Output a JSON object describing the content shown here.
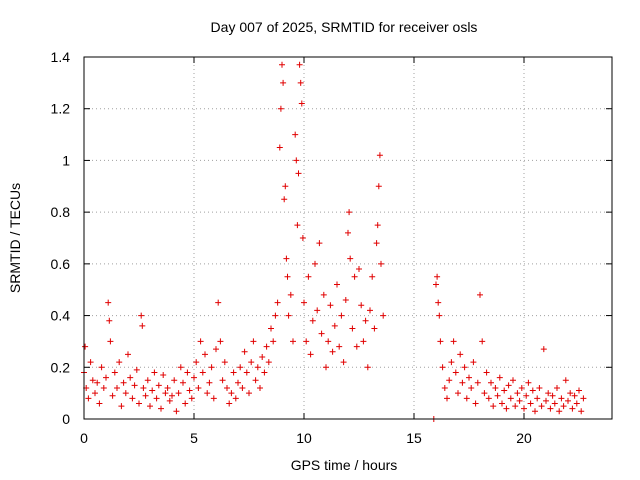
{
  "chart_data": {
    "type": "scatter",
    "title": "Day 007 of 2025, SRMTID for receiver osls",
    "xlabel": "GPS time / hours",
    "ylabel": "SRMTID / TECUs",
    "xlim": [
      0,
      24
    ],
    "ylim": [
      0,
      1.4
    ],
    "x_ticks": [
      0,
      5,
      10,
      15,
      20
    ],
    "x_tick_labels": [
      "0",
      "5",
      "10",
      "15",
      "20"
    ],
    "y_ticks": [
      0,
      0.2,
      0.4,
      0.6,
      0.8,
      1.0,
      1.2,
      1.4
    ],
    "y_tick_labels": [
      "0",
      "0.2",
      "0.4",
      "0.6",
      "0.8",
      "1",
      "1.2",
      "1.4"
    ],
    "grid": true,
    "marker": "plus",
    "series_color": "#e00000",
    "series": [
      {
        "name": "SRMTID",
        "points": [
          [
            0.0,
            0.18
          ],
          [
            0.05,
            0.28
          ],
          [
            0.1,
            0.12
          ],
          [
            0.2,
            0.08
          ],
          [
            0.3,
            0.22
          ],
          [
            0.4,
            0.15
          ],
          [
            0.5,
            0.1
          ],
          [
            0.6,
            0.14
          ],
          [
            0.7,
            0.06
          ],
          [
            0.8,
            0.2
          ],
          [
            0.9,
            0.12
          ],
          [
            1.0,
            0.16
          ],
          [
            1.1,
            0.45
          ],
          [
            1.15,
            0.38
          ],
          [
            1.2,
            0.3
          ],
          [
            1.3,
            0.09
          ],
          [
            1.4,
            0.18
          ],
          [
            1.5,
            0.12
          ],
          [
            1.6,
            0.22
          ],
          [
            1.7,
            0.05
          ],
          [
            1.8,
            0.14
          ],
          [
            1.9,
            0.1
          ],
          [
            2.0,
            0.25
          ],
          [
            2.1,
            0.16
          ],
          [
            2.2,
            0.08
          ],
          [
            2.3,
            0.13
          ],
          [
            2.4,
            0.19
          ],
          [
            2.5,
            0.06
          ],
          [
            2.6,
            0.4
          ],
          [
            2.65,
            0.36
          ],
          [
            2.7,
            0.12
          ],
          [
            2.8,
            0.09
          ],
          [
            2.9,
            0.15
          ],
          [
            3.0,
            0.05
          ],
          [
            3.1,
            0.11
          ],
          [
            3.2,
            0.18
          ],
          [
            3.3,
            0.08
          ],
          [
            3.4,
            0.13
          ],
          [
            3.5,
            0.04
          ],
          [
            3.6,
            0.17
          ],
          [
            3.7,
            0.1
          ],
          [
            3.8,
            0.12
          ],
          [
            3.9,
            0.07
          ],
          [
            4.0,
            0.09
          ],
          [
            4.1,
            0.15
          ],
          [
            4.2,
            0.03
          ],
          [
            4.3,
            0.1
          ],
          [
            4.4,
            0.2
          ],
          [
            4.5,
            0.14
          ],
          [
            4.6,
            0.06
          ],
          [
            4.7,
            0.18
          ],
          [
            4.8,
            0.11
          ],
          [
            4.9,
            0.08
          ],
          [
            5.0,
            0.16
          ],
          [
            5.1,
            0.22
          ],
          [
            5.2,
            0.12
          ],
          [
            5.3,
            0.3
          ],
          [
            5.4,
            0.18
          ],
          [
            5.5,
            0.25
          ],
          [
            5.6,
            0.1
          ],
          [
            5.7,
            0.14
          ],
          [
            5.8,
            0.2
          ],
          [
            5.9,
            0.08
          ],
          [
            6.0,
            0.27
          ],
          [
            6.1,
            0.45
          ],
          [
            6.2,
            0.3
          ],
          [
            6.3,
            0.15
          ],
          [
            6.4,
            0.22
          ],
          [
            6.5,
            0.12
          ],
          [
            6.6,
            0.06
          ],
          [
            6.7,
            0.1
          ],
          [
            6.8,
            0.18
          ],
          [
            6.9,
            0.08
          ],
          [
            7.0,
            0.14
          ],
          [
            7.1,
            0.2
          ],
          [
            7.2,
            0.12
          ],
          [
            7.3,
            0.26
          ],
          [
            7.4,
            0.18
          ],
          [
            7.5,
            0.1
          ],
          [
            7.6,
            0.22
          ],
          [
            7.7,
            0.3
          ],
          [
            7.8,
            0.15
          ],
          [
            7.9,
            0.2
          ],
          [
            8.0,
            0.12
          ],
          [
            8.1,
            0.24
          ],
          [
            8.2,
            0.18
          ],
          [
            8.3,
            0.28
          ],
          [
            8.4,
            0.22
          ],
          [
            8.5,
            0.35
          ],
          [
            8.6,
            0.3
          ],
          [
            8.7,
            0.4
          ],
          [
            8.8,
            0.45
          ],
          [
            8.9,
            1.05
          ],
          [
            8.95,
            1.2
          ],
          [
            9.0,
            1.37
          ],
          [
            9.05,
            1.3
          ],
          [
            9.1,
            0.85
          ],
          [
            9.15,
            0.9
          ],
          [
            9.2,
            0.62
          ],
          [
            9.25,
            0.55
          ],
          [
            9.3,
            0.4
          ],
          [
            9.4,
            0.48
          ],
          [
            9.5,
            0.3
          ],
          [
            9.6,
            1.1
          ],
          [
            9.65,
            1.0
          ],
          [
            9.7,
            0.75
          ],
          [
            9.75,
            0.95
          ],
          [
            9.8,
            1.37
          ],
          [
            9.85,
            1.3
          ],
          [
            9.9,
            1.22
          ],
          [
            9.95,
            0.7
          ],
          [
            10.0,
            0.45
          ],
          [
            10.1,
            0.3
          ],
          [
            10.2,
            0.55
          ],
          [
            10.3,
            0.25
          ],
          [
            10.4,
            0.38
          ],
          [
            10.5,
            0.6
          ],
          [
            10.6,
            0.42
          ],
          [
            10.7,
            0.68
          ],
          [
            10.8,
            0.33
          ],
          [
            10.9,
            0.48
          ],
          [
            11.0,
            0.2
          ],
          [
            11.1,
            0.3
          ],
          [
            11.2,
            0.44
          ],
          [
            11.3,
            0.26
          ],
          [
            11.4,
            0.36
          ],
          [
            11.5,
            0.52
          ],
          [
            11.6,
            0.28
          ],
          [
            11.7,
            0.4
          ],
          [
            11.8,
            0.22
          ],
          [
            11.9,
            0.46
          ],
          [
            12.0,
            0.72
          ],
          [
            12.05,
            0.8
          ],
          [
            12.1,
            0.62
          ],
          [
            12.2,
            0.35
          ],
          [
            12.3,
            0.55
          ],
          [
            12.4,
            0.28
          ],
          [
            12.5,
            0.58
          ],
          [
            12.6,
            0.44
          ],
          [
            12.7,
            0.3
          ],
          [
            12.8,
            0.38
          ],
          [
            12.9,
            0.2
          ],
          [
            13.0,
            0.42
          ],
          [
            13.1,
            0.55
          ],
          [
            13.2,
            0.35
          ],
          [
            13.3,
            0.68
          ],
          [
            13.35,
            0.75
          ],
          [
            13.4,
            0.9
          ],
          [
            13.45,
            1.02
          ],
          [
            13.5,
            0.6
          ],
          [
            13.6,
            0.4
          ],
          [
            15.9,
            0.0
          ],
          [
            16.0,
            0.52
          ],
          [
            16.05,
            0.55
          ],
          [
            16.1,
            0.45
          ],
          [
            16.15,
            0.4
          ],
          [
            16.2,
            0.3
          ],
          [
            16.3,
            0.2
          ],
          [
            16.4,
            0.12
          ],
          [
            16.5,
            0.08
          ],
          [
            16.6,
            0.15
          ],
          [
            16.7,
            0.22
          ],
          [
            16.8,
            0.3
          ],
          [
            16.9,
            0.18
          ],
          [
            17.0,
            0.1
          ],
          [
            17.1,
            0.25
          ],
          [
            17.2,
            0.14
          ],
          [
            17.3,
            0.2
          ],
          [
            17.4,
            0.08
          ],
          [
            17.5,
            0.16
          ],
          [
            17.6,
            0.12
          ],
          [
            17.7,
            0.22
          ],
          [
            17.8,
            0.06
          ],
          [
            17.9,
            0.14
          ],
          [
            18.0,
            0.48
          ],
          [
            18.1,
            0.3
          ],
          [
            18.2,
            0.1
          ],
          [
            18.3,
            0.18
          ],
          [
            18.4,
            0.08
          ],
          [
            18.5,
            0.14
          ],
          [
            18.6,
            0.05
          ],
          [
            18.7,
            0.12
          ],
          [
            18.8,
            0.09
          ],
          [
            18.9,
            0.16
          ],
          [
            19.0,
            0.06
          ],
          [
            19.1,
            0.11
          ],
          [
            19.2,
            0.04
          ],
          [
            19.3,
            0.13
          ],
          [
            19.4,
            0.08
          ],
          [
            19.5,
            0.15
          ],
          [
            19.6,
            0.05
          ],
          [
            19.7,
            0.1
          ],
          [
            19.8,
            0.07
          ],
          [
            19.9,
            0.12
          ],
          [
            20.0,
            0.04
          ],
          [
            20.1,
            0.09
          ],
          [
            20.2,
            0.14
          ],
          [
            20.3,
            0.06
          ],
          [
            20.4,
            0.11
          ],
          [
            20.5,
            0.03
          ],
          [
            20.6,
            0.08
          ],
          [
            20.7,
            0.12
          ],
          [
            20.8,
            0.05
          ],
          [
            20.9,
            0.27
          ],
          [
            21.0,
            0.07
          ],
          [
            21.1,
            0.1
          ],
          [
            21.2,
            0.04
          ],
          [
            21.3,
            0.09
          ],
          [
            21.4,
            0.06
          ],
          [
            21.5,
            0.12
          ],
          [
            21.6,
            0.03
          ],
          [
            21.7,
            0.08
          ],
          [
            21.8,
            0.05
          ],
          [
            21.9,
            0.15
          ],
          [
            22.0,
            0.07
          ],
          [
            22.1,
            0.1
          ],
          [
            22.2,
            0.04
          ],
          [
            22.3,
            0.09
          ],
          [
            22.4,
            0.06
          ],
          [
            22.5,
            0.11
          ],
          [
            22.6,
            0.03
          ],
          [
            22.7,
            0.08
          ]
        ]
      }
    ]
  }
}
